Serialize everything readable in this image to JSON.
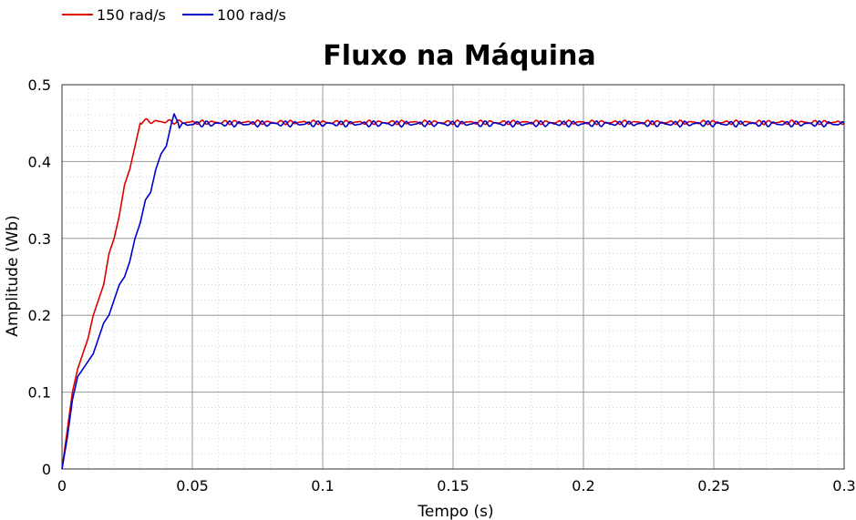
{
  "chart_data": {
    "type": "line",
    "title": "Fluxo na Máquina",
    "xlabel": "Tempo (s)",
    "ylabel": "Amplitude (Wb)",
    "xlim": [
      0,
      0.3
    ],
    "ylim": [
      0,
      0.5
    ],
    "xticks": [
      0,
      0.05,
      0.1,
      0.15,
      0.2,
      0.25,
      0.3
    ],
    "xtick_labels": [
      "0",
      "0.05",
      "0.1",
      "0.15",
      "0.2",
      "0.25",
      "0.3"
    ],
    "yticks": [
      0,
      0.1,
      0.2,
      0.3,
      0.4,
      0.5
    ],
    "ytick_labels": [
      "0",
      "0.1",
      "0.2",
      "0.3",
      "0.4",
      "0.5"
    ],
    "grid": true,
    "legend_placement": "top-left",
    "series": [
      {
        "name": "150 rad/s",
        "color": "#dd0000",
        "ripple": 0.003,
        "x": [
          0,
          0.002,
          0.004,
          0.006,
          0.008,
          0.01,
          0.012,
          0.014,
          0.016,
          0.018,
          0.02,
          0.022,
          0.024,
          0.026,
          0.028,
          0.03,
          0.031,
          0.035,
          0.04,
          0.05,
          0.1,
          0.15,
          0.2,
          0.25,
          0.3
        ],
        "y": [
          0,
          0.05,
          0.1,
          0.13,
          0.15,
          0.17,
          0.2,
          0.22,
          0.24,
          0.28,
          0.3,
          0.33,
          0.37,
          0.39,
          0.42,
          0.45,
          0.453,
          0.452,
          0.452,
          0.451,
          0.451,
          0.451,
          0.451,
          0.451,
          0.451
        ]
      },
      {
        "name": "100 rad/s",
        "color": "#0000cc",
        "ripple": 0.004,
        "x": [
          0,
          0.002,
          0.004,
          0.006,
          0.008,
          0.01,
          0.012,
          0.014,
          0.016,
          0.018,
          0.02,
          0.022,
          0.024,
          0.026,
          0.028,
          0.03,
          0.032,
          0.034,
          0.036,
          0.038,
          0.04,
          0.042,
          0.043,
          0.045,
          0.05,
          0.1,
          0.15,
          0.2,
          0.25,
          0.3
        ],
        "y": [
          0,
          0.04,
          0.09,
          0.12,
          0.13,
          0.14,
          0.15,
          0.17,
          0.19,
          0.2,
          0.22,
          0.24,
          0.25,
          0.27,
          0.3,
          0.32,
          0.35,
          0.36,
          0.39,
          0.41,
          0.42,
          0.45,
          0.462,
          0.447,
          0.449,
          0.449,
          0.449,
          0.449,
          0.449,
          0.449
        ]
      }
    ]
  }
}
